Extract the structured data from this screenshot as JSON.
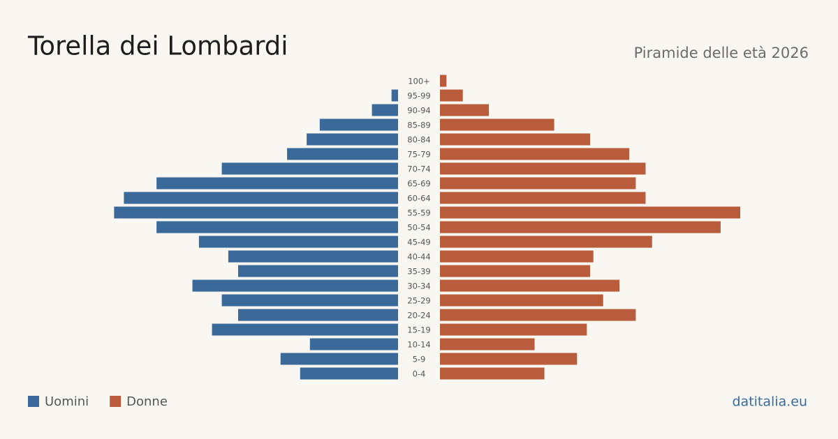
{
  "chart_data": {
    "type": "pyramid",
    "title": "Torella dei Lombardi",
    "subtitle": "Piramide delle età 2026",
    "source": "datitalia.eu",
    "categories": [
      "100+",
      "95-99",
      "90-94",
      "85-89",
      "80-84",
      "75-79",
      "70-74",
      "65-69",
      "60-64",
      "55-59",
      "50-54",
      "45-49",
      "40-44",
      "35-39",
      "30-34",
      "25-29",
      "20-24",
      "15-19",
      "10-14",
      "5-9",
      "0-4"
    ],
    "series": [
      {
        "name": "Uomini",
        "color": "#3b6a9a",
        "values": [
          0,
          2,
          8,
          24,
          28,
          34,
          54,
          74,
          84,
          87,
          74,
          61,
          52,
          49,
          63,
          54,
          49,
          57,
          27,
          36,
          30
        ]
      },
      {
        "name": "Donne",
        "color": "#b95c3c",
        "values": [
          2,
          7,
          15,
          35,
          46,
          58,
          63,
          60,
          63,
          92,
          86,
          65,
          47,
          46,
          55,
          50,
          60,
          45,
          29,
          42,
          32
        ]
      }
    ]
  }
}
